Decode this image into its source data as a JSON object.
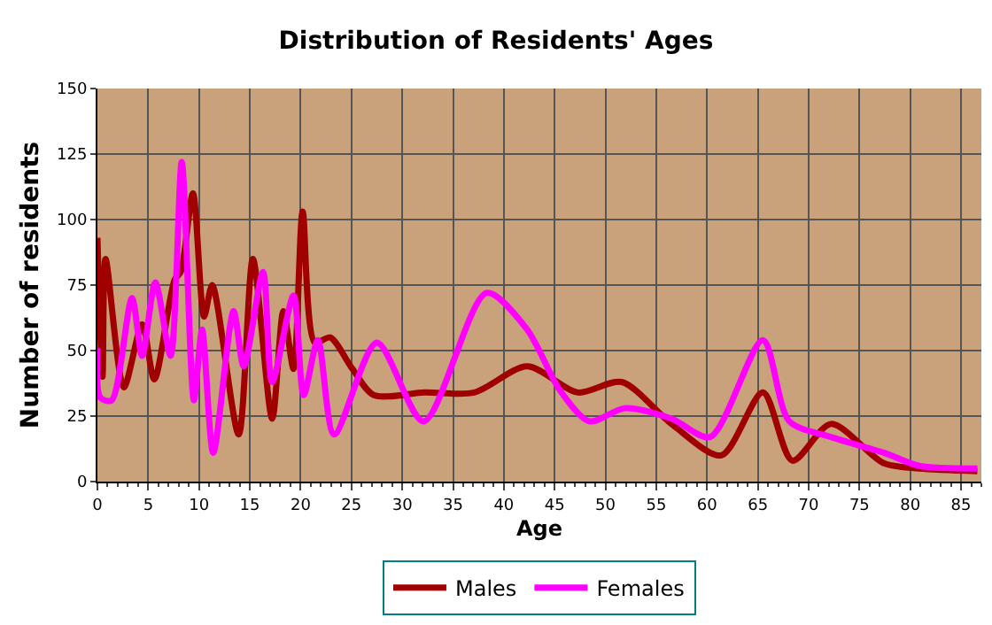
{
  "chart_data": {
    "type": "line",
    "title": "Distribution of Residents' Ages",
    "xlabel": "Age",
    "ylabel": "Number of residents",
    "xlim": [
      0,
      87
    ],
    "xticks": [
      0,
      5,
      10,
      15,
      20,
      25,
      30,
      35,
      40,
      45,
      50,
      55,
      60,
      65,
      70,
      75,
      80,
      85
    ],
    "ylim": [
      0,
      150
    ],
    "yticks": [
      0,
      25,
      50,
      75,
      100,
      125,
      150
    ],
    "grid": true,
    "legend": "bottom",
    "marker": "none",
    "line_style": "solid",
    "series": [
      {
        "name": "Males",
        "color": "#a00000",
        "x": [
          0,
          0.5,
          0.8,
          2.6,
          4.4,
          5.6,
          7.6,
          8.2,
          9.4,
          10.5,
          11.3,
          13.9,
          15.3,
          17.2,
          18.3,
          19.3,
          20.2,
          21.4,
          22.9,
          25.1,
          27.2,
          32.2,
          37.1,
          42.3,
          47.3,
          51.6,
          56.5,
          61.4,
          65.5,
          68.4,
          72.2,
          77.4,
          80.9,
          86.6
        ],
        "values": [
          93,
          40,
          85,
          36,
          60,
          39,
          77,
          80,
          110,
          63,
          75,
          18,
          85,
          24,
          65,
          43,
          103,
          53,
          55,
          43,
          33,
          34,
          34,
          44,
          34,
          38,
          22,
          10,
          34,
          8,
          22,
          7,
          5,
          4
        ]
      },
      {
        "name": "Females",
        "color": "#ff00ff",
        "x": [
          0,
          0.3,
          1.4,
          3.4,
          4.4,
          5.7,
          7.2,
          8.3,
          9.5,
          10.3,
          11.4,
          13.4,
          14.4,
          16.3,
          17.2,
          19.3,
          20.3,
          21.7,
          23.3,
          27.5,
          32.1,
          38.3,
          42.3,
          45.5,
          48.4,
          51.9,
          56.5,
          60.3,
          65.5,
          68.1,
          72.2,
          77.4,
          80.9,
          86.6
        ],
        "values": [
          51,
          32,
          31,
          70,
          48,
          76,
          48,
          122,
          31,
          58,
          11,
          65,
          44,
          80,
          38,
          71,
          33,
          54,
          18,
          53,
          23,
          72,
          58,
          35,
          23,
          28,
          24,
          17,
          54,
          23,
          17,
          11,
          6,
          5
        ]
      }
    ]
  }
}
